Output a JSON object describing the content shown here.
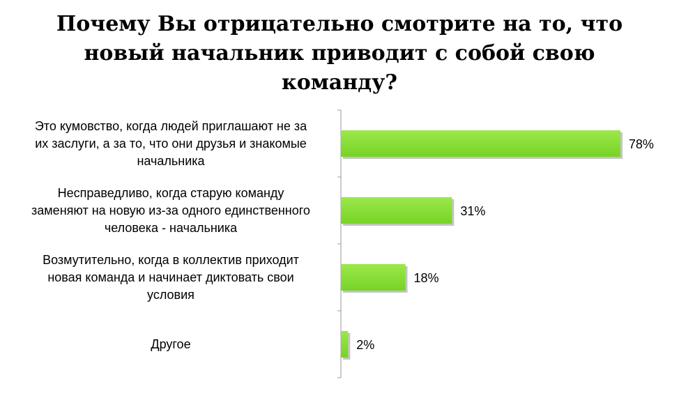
{
  "chart_data": {
    "type": "bar",
    "orientation": "horizontal",
    "title": "Почему Вы отрицательно смотрите на то, что новый начальник приводит с собой свою команду?",
    "categories": [
      [
        "Это кумовство, когда людей приглашают не за",
        "их заслуги, а за то, что они друзья и знакомые",
        "начальника"
      ],
      [
        "Несправедливо, когда старую команду",
        "заменяют на новую из-за одного единственного",
        "человека - начальника"
      ],
      [
        "Возмутительно, когда в коллектив приходит",
        "новая команда и начинает диктовать свои",
        "условия"
      ],
      [
        "Другое"
      ]
    ],
    "values": [
      78,
      31,
      18,
      2
    ],
    "value_labels": [
      "78%",
      "31%",
      "18%",
      "2%"
    ],
    "xlim": [
      0,
      100
    ],
    "grid": false,
    "legend": "none",
    "bar_color": "#77d326",
    "bar_color_light": "#9be84a"
  }
}
